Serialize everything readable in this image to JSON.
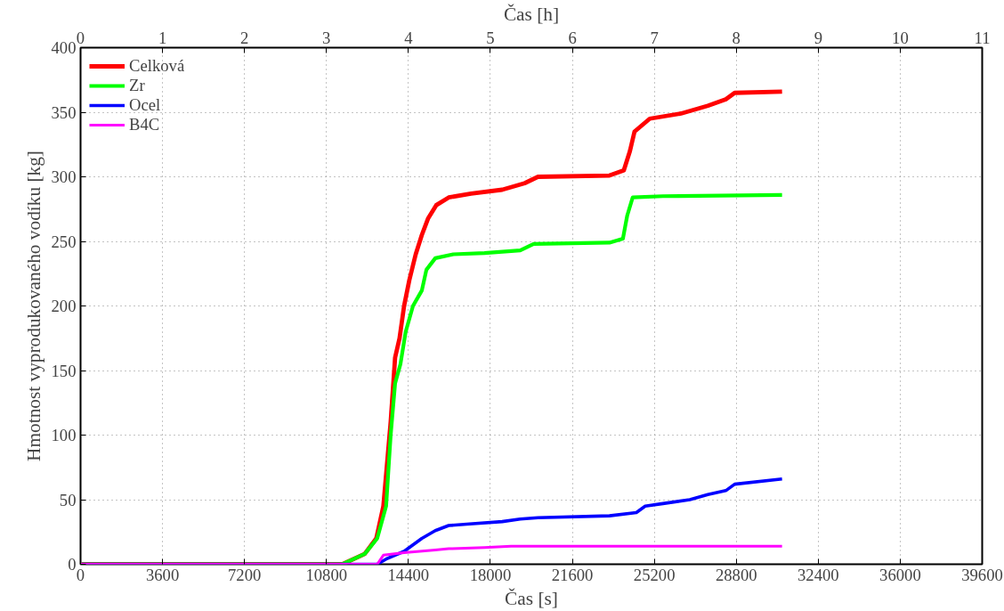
{
  "chart_data": {
    "type": "line",
    "xlabel": "Čas [s]",
    "ylabel": "Hmotnost vyprodukovaného vodíku [kg]",
    "x2label": "Čas [h]",
    "xlim": [
      0,
      39600
    ],
    "xticks": [
      0,
      3600,
      7200,
      10800,
      14400,
      18000,
      21600,
      25200,
      28800,
      32400,
      36000,
      39600
    ],
    "x2lim": [
      0,
      11
    ],
    "x2ticks": [
      0,
      1,
      2,
      3,
      4,
      5,
      6,
      7,
      8,
      9,
      10,
      11
    ],
    "ylim": [
      0,
      400
    ],
    "yticks": [
      0,
      50,
      100,
      150,
      200,
      250,
      300,
      350,
      400
    ],
    "grid": true,
    "legend": "top left",
    "line_style": "solid",
    "marker": "none",
    "series": [
      {
        "name": "Celková",
        "color": "#ff0000",
        "x": [
          0,
          11500,
          12480,
          12990,
          13300,
          13620,
          13815,
          14010,
          14210,
          14440,
          14720,
          14990,
          15270,
          15620,
          16170,
          17150,
          18520,
          19500,
          20090,
          23230,
          23860,
          24130,
          24330,
          25000,
          26370,
          27550,
          28340,
          28730,
          30810
        ],
        "values": [
          0,
          0,
          8,
          20,
          45,
          110,
          160,
          175,
          200,
          220,
          240,
          255,
          268,
          278,
          284,
          287,
          290,
          295,
          300,
          301,
          305,
          320,
          335,
          345,
          349,
          355,
          360,
          365,
          366
        ]
      },
      {
        "name": "Zr",
        "color": "#00ff00",
        "x": [
          0,
          11500,
          12480,
          13030,
          13420,
          13620,
          13815,
          14050,
          14280,
          14600,
          14990,
          15190,
          15580,
          16370,
          17740,
          19310,
          19900,
          23230,
          23820,
          24010,
          24250,
          25580,
          30810
        ],
        "values": [
          0,
          0,
          8,
          20,
          45,
          100,
          140,
          155,
          180,
          200,
          212,
          228,
          237,
          240,
          241,
          243,
          248,
          249,
          252,
          270,
          284,
          285,
          286
        ]
      },
      {
        "name": "Ocel",
        "color": "#0000ff",
        "x": [
          0,
          13030,
          13420,
          14210,
          14990,
          15580,
          16170,
          16960,
          18520,
          19310,
          20090,
          23230,
          24410,
          24800,
          25580,
          26760,
          27550,
          28340,
          28730,
          30810
        ],
        "values": [
          0,
          0,
          4,
          10,
          20,
          26,
          30,
          31,
          33,
          35,
          36,
          37.5,
          40,
          45,
          47,
          50,
          54,
          57,
          62,
          66
        ]
      },
      {
        "name": "B4C",
        "color": "#ff00ff",
        "x": [
          0,
          13030,
          13300,
          14210,
          15580,
          16170,
          17740,
          18910,
          30810
        ],
        "values": [
          0,
          0,
          7,
          9,
          11,
          12,
          13,
          14,
          14
        ]
      }
    ]
  }
}
